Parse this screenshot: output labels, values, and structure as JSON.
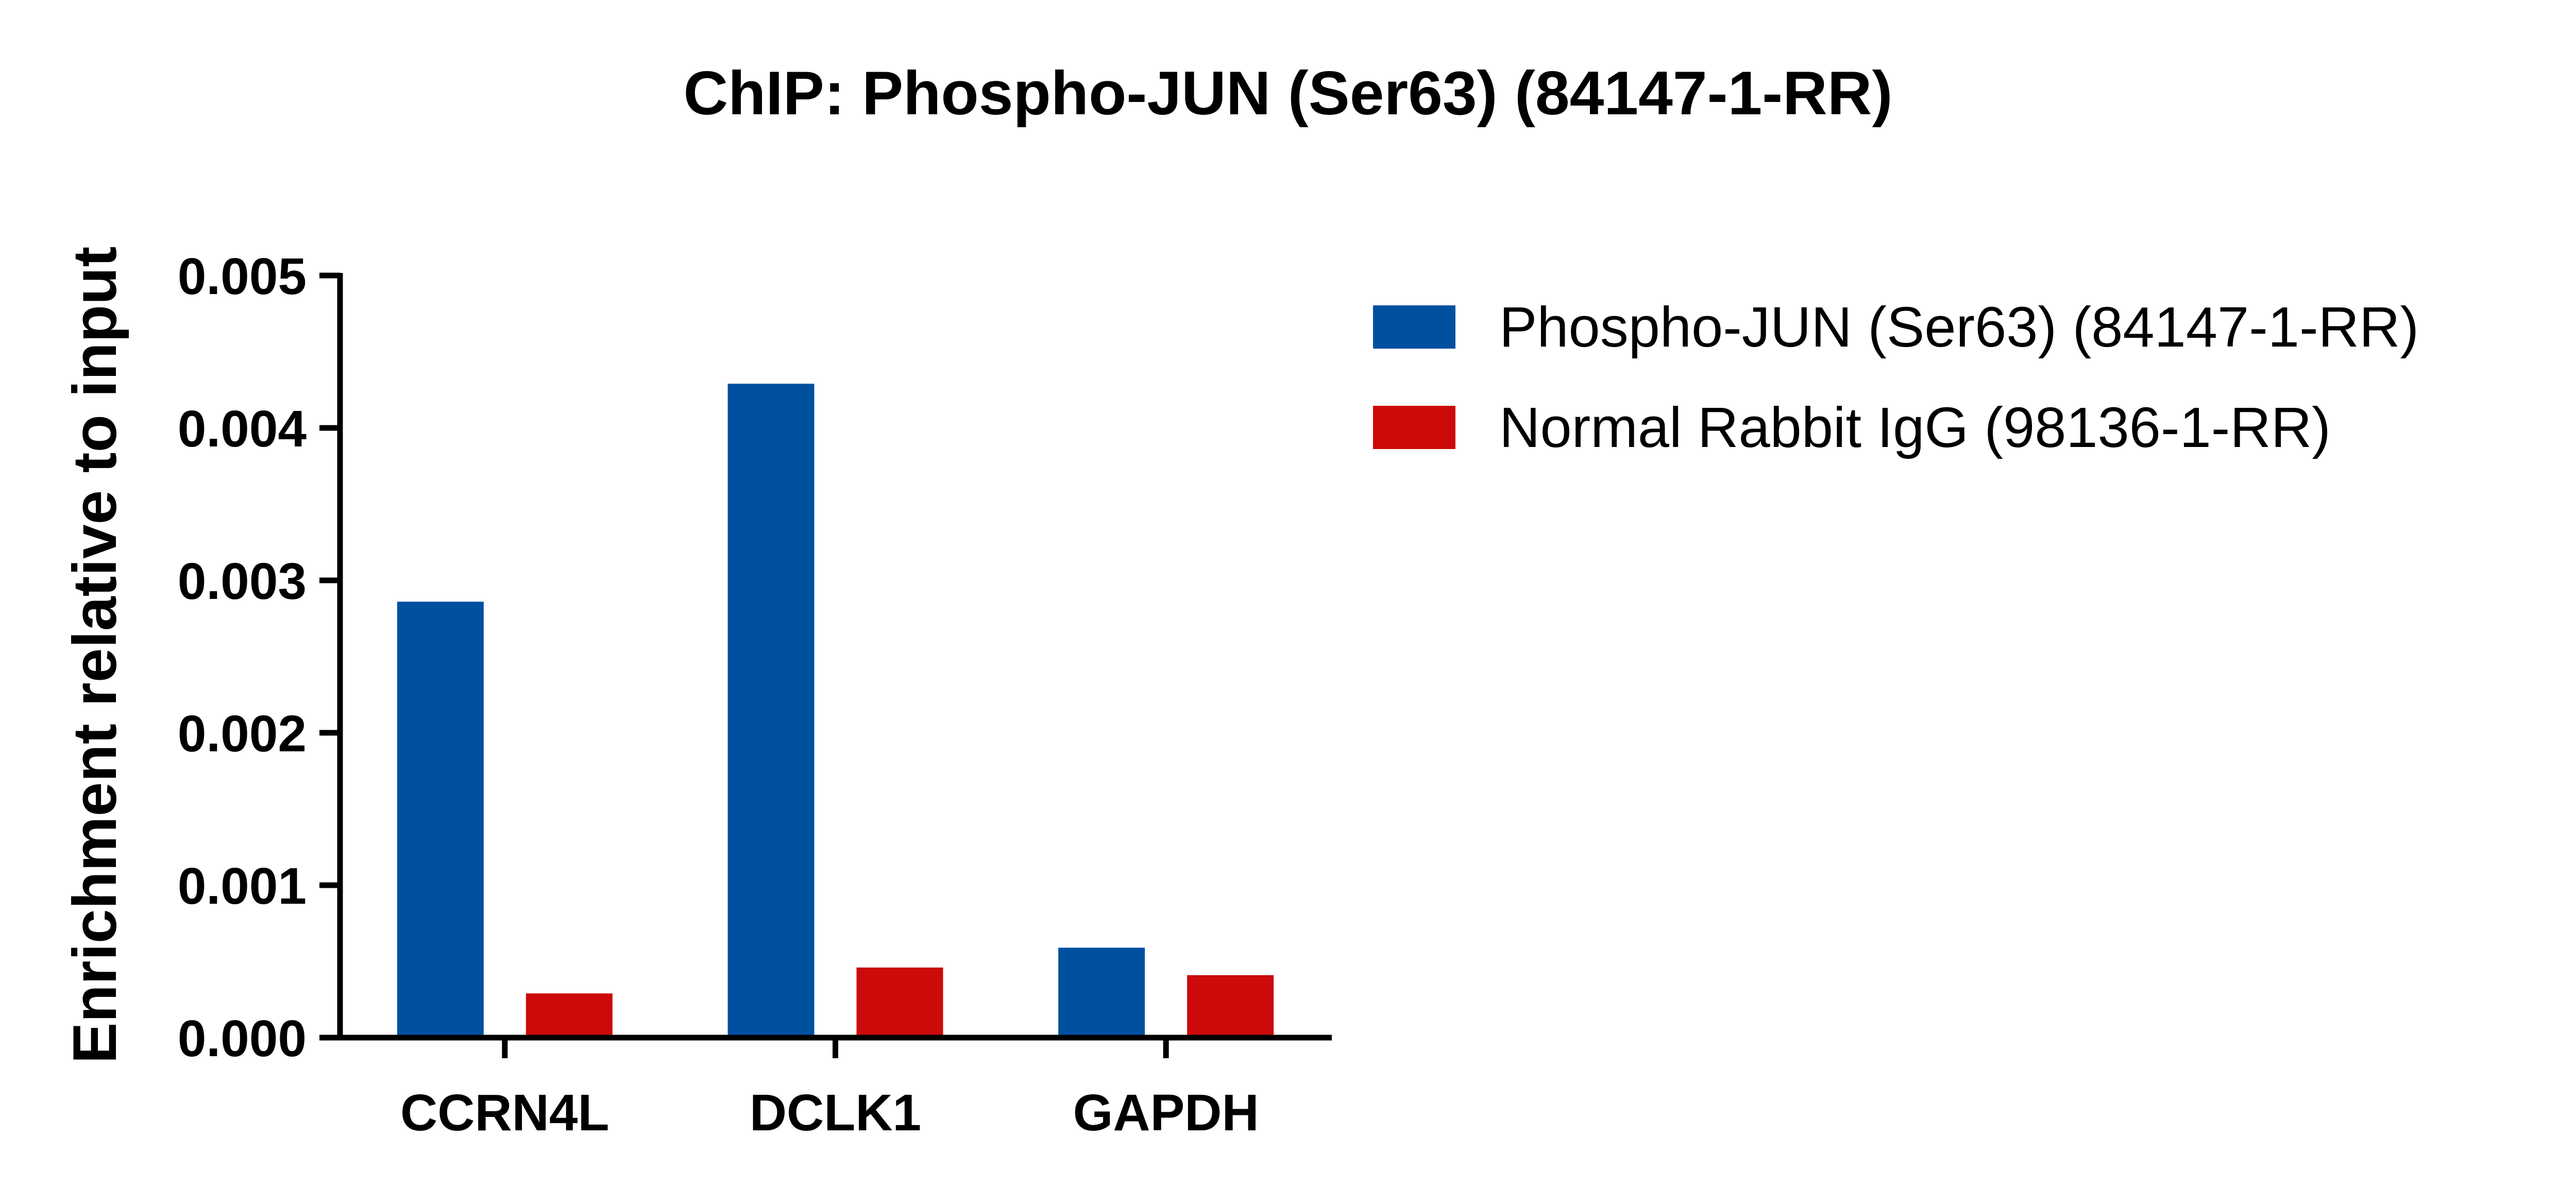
{
  "chart_data": {
    "type": "bar",
    "title": "ChIP: Phospho-JUN (Ser63) (84147-1-RR)",
    "xlabel": "",
    "ylabel": "Enrichment relative to input",
    "categories": [
      "CCRN4L",
      "DCLK1",
      "GAPDH"
    ],
    "ylim": [
      0,
      0.005
    ],
    "yticks": [
      "0.000",
      "0.001",
      "0.002",
      "0.003",
      "0.004",
      "0.005"
    ],
    "grid": false,
    "legend_position": "top-right",
    "series": [
      {
        "name": "Phospho-JUN (Ser63) (84147-1-RR)",
        "color": "#0050a0",
        "values": [
          0.00286,
          0.00429,
          0.00059
        ]
      },
      {
        "name": "Normal Rabbit IgG (98136-1-RR)",
        "color": "#cc0a0a",
        "values": [
          0.00029,
          0.00046,
          0.00041
        ]
      }
    ]
  }
}
